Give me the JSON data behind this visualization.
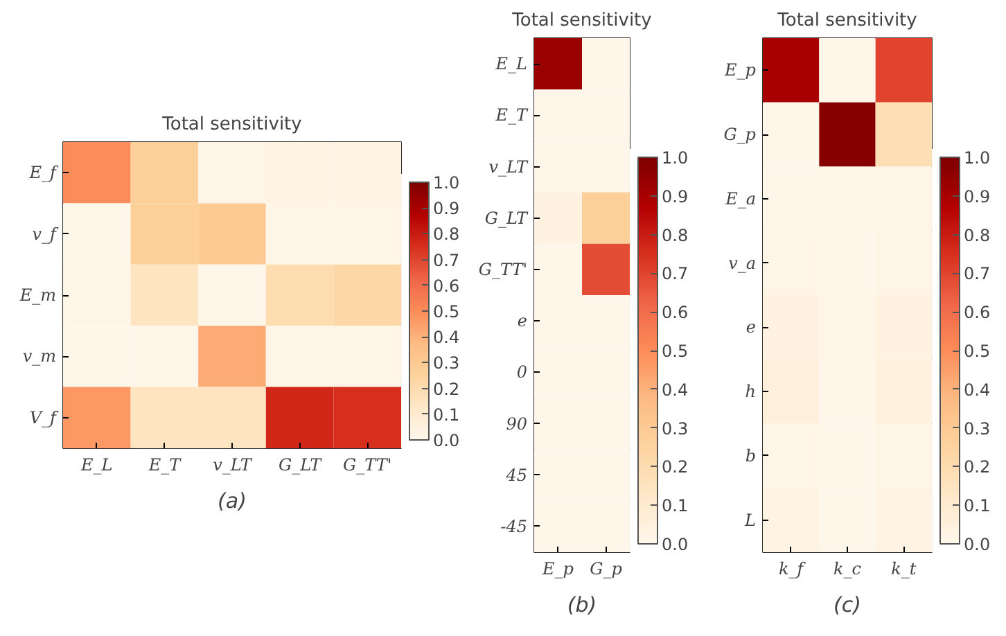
{
  "chart_data": [
    {
      "type": "heatmap",
      "title": "Total sensitivity",
      "categories": [
        "E_L",
        "E_T",
        "v_LT",
        "G_LT",
        "G_TT'"
      ],
      "y_categories": [
        "E_f",
        "v_f",
        "E_m",
        "v_m",
        "V_f"
      ],
      "cells": [
        [
          0.5,
          0.27,
          0.02,
          0.03,
          0.03
        ],
        [
          0.01,
          0.27,
          0.3,
          0.02,
          0.02
        ],
        [
          0.02,
          0.15,
          0.01,
          0.2,
          0.23
        ],
        [
          0.01,
          0.01,
          0.42,
          0.02,
          0.02
        ],
        [
          0.47,
          0.15,
          0.15,
          0.77,
          0.75
        ]
      ],
      "clim": [
        0,
        1
      ],
      "cticks": [
        {
          "value": 0,
          "label": "0.0"
        },
        {
          "value": 0.1,
          "label": "0.1"
        },
        {
          "value": 0.2,
          "label": "0.2"
        },
        {
          "value": 0.3,
          "label": "0.3"
        },
        {
          "value": 0.4,
          "label": "0.4"
        },
        {
          "value": 0.5,
          "label": "0.5"
        },
        {
          "value": 0.6,
          "label": "0.6"
        },
        {
          "value": 0.7,
          "label": "0.7"
        },
        {
          "value": 0.8,
          "label": "0.8"
        },
        {
          "value": 0.9,
          "label": "0.9"
        },
        {
          "value": 1,
          "label": "1.0"
        }
      ],
      "annotations": [
        "(a)"
      ]
    },
    {
      "type": "heatmap",
      "title": "Total sensitivity",
      "categories": [
        "E_p",
        "G_p"
      ],
      "y_categories": [
        "E_L",
        "E_T",
        "v_LT",
        "G_LT",
        "G_TT'",
        "e",
        "0",
        "90",
        "45",
        "-45"
      ],
      "cells": [
        [
          0.93,
          0.01
        ],
        [
          0.01,
          0.01
        ],
        [
          0.01,
          0.01
        ],
        [
          0.04,
          0.27
        ],
        [
          0.01,
          0.68
        ],
        [
          0.01,
          0.01
        ],
        [
          0.01,
          0.01
        ],
        [
          0.01,
          0.01
        ],
        [
          0.01,
          0.01
        ],
        [
          0.01,
          0.01
        ]
      ],
      "clim": [
        0,
        1
      ],
      "cticks": [
        {
          "value": 0,
          "label": "0.0"
        },
        {
          "value": 0.1,
          "label": "0.1"
        },
        {
          "value": 0.2,
          "label": "0.2"
        },
        {
          "value": 0.3,
          "label": "0.3"
        },
        {
          "value": 0.4,
          "label": "0.4"
        },
        {
          "value": 0.5,
          "label": "0.5"
        },
        {
          "value": 0.6,
          "label": "0.6"
        },
        {
          "value": 0.7,
          "label": "0.7"
        },
        {
          "value": 0.8,
          "label": "0.8"
        },
        {
          "value": 0.9,
          "label": "0.9"
        },
        {
          "value": 1,
          "label": "1.0"
        }
      ],
      "annotations": [
        "(b)"
      ]
    },
    {
      "type": "heatmap",
      "title": "Total sensitivity",
      "categories": [
        "k_f",
        "k_c",
        "k_t"
      ],
      "y_categories": [
        "E_p",
        "G_p",
        "E_a",
        "v_a",
        "e",
        "h",
        "b",
        "L"
      ],
      "cells": [
        [
          0.9,
          0.01,
          0.7
        ],
        [
          0.01,
          0.98,
          0.18
        ],
        [
          0.01,
          0.02,
          0.02
        ],
        [
          0.02,
          0.01,
          0.02
        ],
        [
          0.04,
          0.02,
          0.04
        ],
        [
          0.06,
          0.01,
          0.05
        ],
        [
          0.02,
          0.01,
          0.02
        ],
        [
          0.03,
          0.01,
          0.03
        ]
      ],
      "clim": [
        0,
        1
      ],
      "cticks": [
        {
          "value": 0,
          "label": "0.0"
        },
        {
          "value": 0.1,
          "label": "0.1"
        },
        {
          "value": 0.2,
          "label": "0.2"
        },
        {
          "value": 0.3,
          "label": "0.3"
        },
        {
          "value": 0.4,
          "label": "0.4"
        },
        {
          "value": 0.5,
          "label": "0.5"
        },
        {
          "value": 0.6,
          "label": "0.6"
        },
        {
          "value": 0.7,
          "label": "0.7"
        },
        {
          "value": 0.8,
          "label": "0.8"
        },
        {
          "value": 0.9,
          "label": "0.9"
        },
        {
          "value": 1,
          "label": "1.0"
        }
      ],
      "annotations": [
        "(c)"
      ]
    }
  ]
}
